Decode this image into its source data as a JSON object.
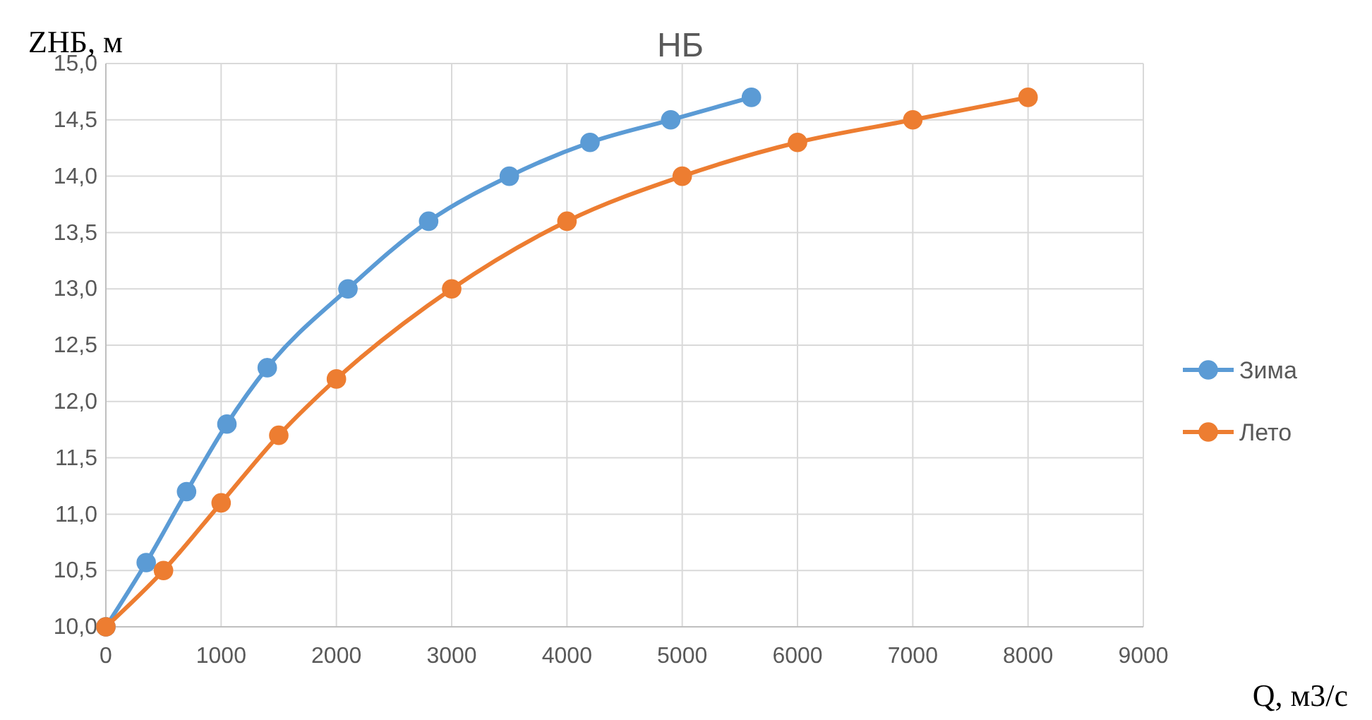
{
  "chart_data": {
    "type": "line",
    "title": "НБ",
    "xlabel": "Q, м3/с",
    "ylabel": "ZНБ, м",
    "xlim": [
      0,
      9000
    ],
    "xticks": [
      0,
      1000,
      2000,
      3000,
      4000,
      5000,
      6000,
      7000,
      8000,
      9000
    ],
    "ylim": [
      10,
      15
    ],
    "yticks": [
      {
        "value": 10,
        "label": "10,0"
      },
      {
        "value": 10.5,
        "label": "10,5"
      },
      {
        "value": 11,
        "label": "11,0"
      },
      {
        "value": 11.5,
        "label": "11,5"
      },
      {
        "value": 12,
        "label": "12,0"
      },
      {
        "value": 12.5,
        "label": "12,5"
      },
      {
        "value": 13,
        "label": "13,0"
      },
      {
        "value": 13.5,
        "label": "13,5"
      },
      {
        "value": 14,
        "label": "14,0"
      },
      {
        "value": 14.5,
        "label": "14,5"
      },
      {
        "value": 15,
        "label": "15,0"
      }
    ],
    "grid": true,
    "legend": "right",
    "marker": "circle",
    "line_style": "solid",
    "series": [
      {
        "name": "Зима",
        "color": "#5b9bd5",
        "x": [
          0,
          350,
          700,
          1050,
          1400,
          2100,
          2800,
          3500,
          4200,
          4900,
          5600
        ],
        "values": [
          10,
          10.57,
          11.2,
          11.8,
          12.3,
          13.0,
          13.6,
          14.0,
          14.3,
          14.5,
          14.7
        ]
      },
      {
        "name": "Лето",
        "color": "#ed7d31",
        "x": [
          0,
          500,
          1000,
          1500,
          2000,
          3000,
          4000,
          5000,
          6000,
          7000,
          8000
        ],
        "values": [
          10,
          10.5,
          11.1,
          11.7,
          12.2,
          13.0,
          13.6,
          14.0,
          14.3,
          14.5,
          14.7
        ]
      }
    ]
  }
}
